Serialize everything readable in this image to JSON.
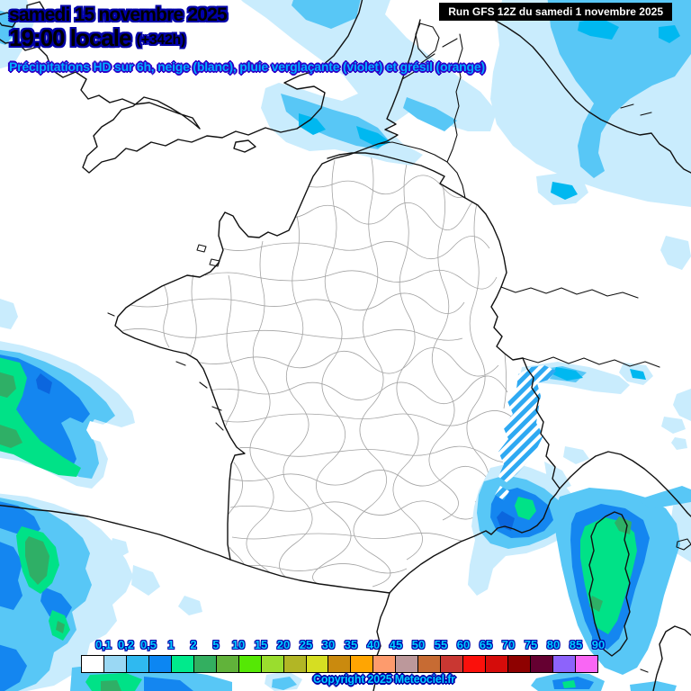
{
  "header": {
    "date_line": "samedi 15 novembre 2025",
    "time_line": "19:00 locale",
    "offset": "(+342h)",
    "subtitle": "Précipitations HD sur 6h, neige (blanc), pluie verglaçante (violet) et grésil (orange)",
    "run_info": "Run GFS 12Z du samedi 1 novembre 2025"
  },
  "legend": {
    "unit_note": "precipitation scale (mm / 6h)",
    "labels": [
      "0,1",
      "0,2",
      "0,5",
      "1",
      "2",
      "5",
      "10",
      "15",
      "20",
      "25",
      "30",
      "35",
      "40",
      "45",
      "50",
      "55",
      "60",
      "65",
      "70",
      "75",
      "80",
      "85",
      "90"
    ],
    "cell_colors": [
      "#FFFFFF",
      "#9AD8F4",
      "#2FB9F0",
      "#0C86F2",
      "#00EA8C",
      "#33AF60",
      "#61B33A",
      "#55E805",
      "#9ADD2E",
      "#B2B625",
      "#D6DE22",
      "#CA8A0E",
      "#FFA502",
      "#FD9B6D",
      "#BC989B",
      "#C76B33",
      "#C93732",
      "#FB100B",
      "#D50C0A",
      "#8E0100",
      "#650031",
      "#8D63FB",
      "#F966F4"
    ]
  },
  "footer": {
    "copyright": "Copyright 2025 Meteociel.fr"
  },
  "colors": {
    "title_fill": "#00CDFF",
    "title_outline": "#0000A8",
    "subtitle_fill": "#00AEFF",
    "subtitle_outline": "#2B00C8",
    "run_box_bg": "#000000",
    "run_box_text": "#FFFFFF",
    "precip_palette": {
      "trace": "#C9ECFD",
      "light": "#58C7F6",
      "cyan": "#00B8F0",
      "moderate_blue": "#1486F0",
      "strong_blue": "#0B66DE",
      "heavy_green": "#00E287",
      "intense_green": "#2FAF66"
    }
  }
}
